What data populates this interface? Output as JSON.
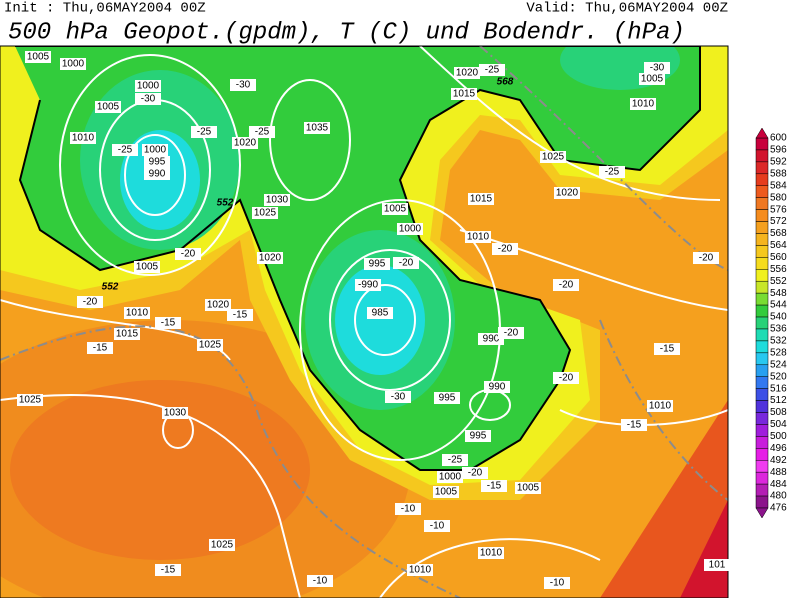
{
  "header": {
    "init": "Init : Thu,06MAY2004 00Z",
    "valid": "Valid: Thu,06MAY2004 00Z",
    "title": "500 hPa Geopot.(gpdm), T (C) und Bodendr. (hPa)"
  },
  "colorbar": {
    "levels": [
      "600",
      "596",
      "592",
      "588",
      "584",
      "580",
      "576",
      "572",
      "568",
      "564",
      "560",
      "556",
      "552",
      "548",
      "544",
      "540",
      "536",
      "532",
      "528",
      "524",
      "520",
      "516",
      "512",
      "508",
      "504",
      "500",
      "496",
      "492",
      "488",
      "484",
      "480",
      "476"
    ],
    "colors": [
      "#c8003c",
      "#d2142d",
      "#dc2828",
      "#e63c1e",
      "#ee5a1e",
      "#f07822",
      "#f58c1e",
      "#f5a01e",
      "#f5b41e",
      "#f5c81e",
      "#f5dc1e",
      "#f0f01e",
      "#c8e628",
      "#78dc32",
      "#32cc3c",
      "#28d278",
      "#1edcb4",
      "#1edcdc",
      "#28c8f0",
      "#28a0f0",
      "#3278f0",
      "#3c50e6",
      "#5032dc",
      "#7828dc",
      "#a01edc",
      "#c81edc",
      "#e61ee6",
      "#f03cf0",
      "#dc28dc",
      "#b41eb4",
      "#8c148c"
    ]
  },
  "map": {
    "labels": [
      "1005",
      "1000",
      "1000",
      "-30",
      "1005",
      "1010",
      "-25",
      "1000",
      "995",
      "990",
      "-25",
      "1020",
      "-25",
      "1035",
      "1030",
      "1025",
      "1020",
      "1005",
      "-20",
      "1010",
      "1015",
      "-15",
      "1020",
      "-15",
      "1025",
      "-15",
      "-20",
      "1025",
      "1030",
      "-30",
      "1020",
      "-25",
      "1015",
      "1025",
      "1020",
      "1005",
      "1000",
      "995",
      "-20",
      "-990",
      "985",
      "990",
      "-20",
      "-20",
      "1015",
      "1010",
      "-20",
      "-30",
      "995",
      "990",
      "995",
      "-25",
      "-20",
      "1000",
      "1005",
      "-15",
      "1005",
      "-20",
      "1010",
      "-15",
      "-15",
      "-20",
      "1005",
      "1010",
      "-30",
      "-25",
      "-10",
      "-10",
      "1010",
      "1010",
      "-10",
      "-10",
      "-15",
      "1025",
      "101",
      "568",
      "552",
      "552"
    ]
  }
}
